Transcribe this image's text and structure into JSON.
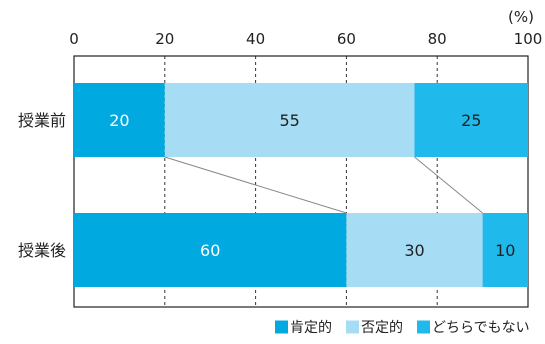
{
  "chart_data": {
    "type": "bar",
    "orientation": "horizontal",
    "stacked": true,
    "unit_label": "(%)",
    "xlim": [
      0,
      100
    ],
    "x_ticks": [
      0,
      20,
      40,
      60,
      80,
      100
    ],
    "categories": [
      "授業前",
      "授業後"
    ],
    "series": [
      {
        "name": "肯定的",
        "values": [
          20,
          60
        ],
        "color": "#00a9e0",
        "label_color": "#ffffff"
      },
      {
        "name": "否定的",
        "values": [
          55,
          30
        ],
        "color": "#a6dcf4",
        "label_color": "#222222"
      },
      {
        "name": "どちらでもない",
        "values": [
          25,
          10
        ],
        "color": "#1fb9ec",
        "label_color": "#222222"
      }
    ],
    "grid": "dashed vertical",
    "legend_position": "bottom-right",
    "connector_lines": true
  }
}
